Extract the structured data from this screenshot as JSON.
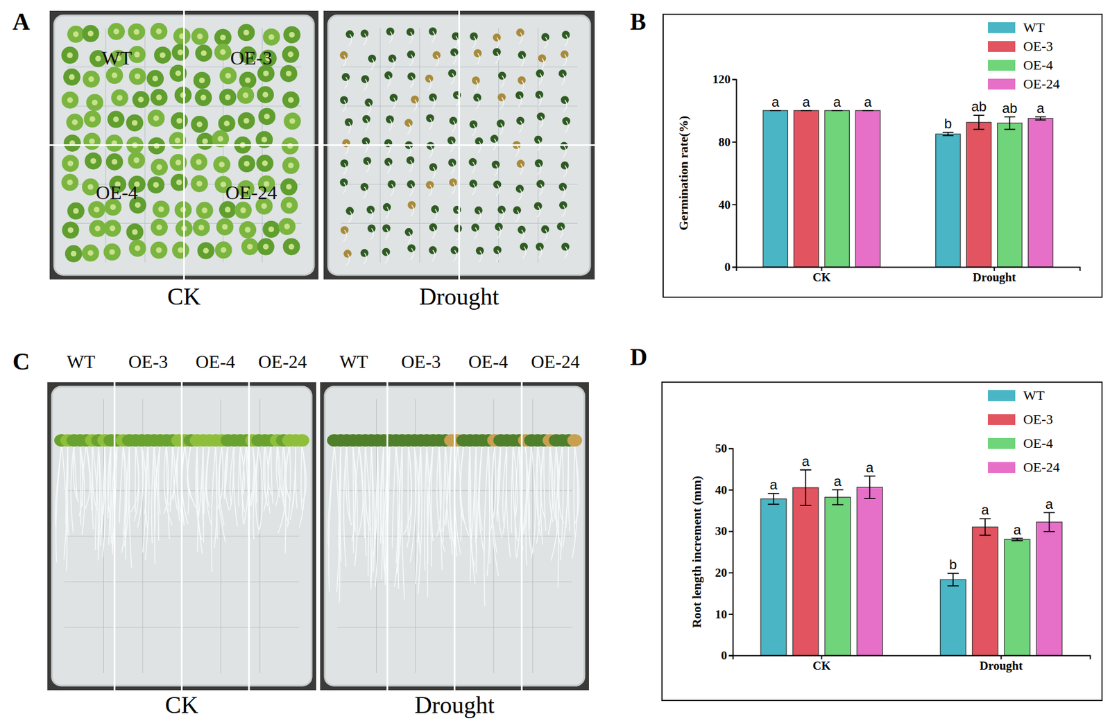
{
  "chart_data": [
    {
      "type": "bar",
      "ylabel": "Germination rate(%)",
      "categories": [
        "CK",
        "Drought"
      ],
      "series": [
        {
          "name": "WT",
          "color": "#4ab5c4",
          "values": [
            100,
            85
          ],
          "errors": [
            0,
            1
          ],
          "letters": [
            "a",
            "b"
          ]
        },
        {
          "name": "OE-3",
          "color": "#e2545f",
          "values": [
            100,
            92.5
          ],
          "errors": [
            0,
            4.5
          ],
          "letters": [
            "a",
            "ab"
          ]
        },
        {
          "name": "OE-4",
          "color": "#6fd47a",
          "values": [
            100,
            92
          ],
          "errors": [
            0,
            4
          ],
          "letters": [
            "a",
            "ab"
          ]
        },
        {
          "name": "OE-24",
          "color": "#e66fc8",
          "values": [
            100,
            95
          ],
          "errors": [
            0,
            1
          ],
          "letters": [
            "a",
            "a"
          ]
        }
      ],
      "ylim": [
        0,
        120
      ],
      "yticks": [
        0,
        40,
        80,
        120
      ],
      "legend": "upper right"
    },
    {
      "type": "bar",
      "ylabel": "Root length increment (mm)",
      "categories": [
        "CK",
        "Drought"
      ],
      "series": [
        {
          "name": "WT",
          "color": "#4ab5c4",
          "values": [
            37.8,
            18.3
          ],
          "errors": [
            1.3,
            1.5
          ],
          "letters": [
            "a",
            "b"
          ]
        },
        {
          "name": "OE-3",
          "color": "#e2545f",
          "values": [
            40.5,
            31
          ],
          "errors": [
            4.3,
            2
          ],
          "letters": [
            "a",
            "a"
          ]
        },
        {
          "name": "OE-4",
          "color": "#6fd47a",
          "values": [
            38.2,
            28
          ],
          "errors": [
            1.8,
            0.3
          ],
          "letters": [
            "a",
            "a"
          ]
        },
        {
          "name": "OE-24",
          "color": "#e66fc8",
          "values": [
            40.6,
            32.2
          ],
          "errors": [
            2.7,
            2.3
          ],
          "letters": [
            "a",
            "a"
          ]
        }
      ],
      "ylim": [
        0,
        50
      ],
      "yticks": [
        0,
        10,
        20,
        30,
        40,
        50
      ],
      "legend": "upper right"
    }
  ],
  "figure": {
    "panel_labels": [
      "A",
      "B",
      "C",
      "D"
    ],
    "photos": [
      {
        "plates": [
          {
            "caption": "CK",
            "labels": [
              "WT",
              "OE-3",
              "OE-4",
              "OE-24"
            ]
          },
          {
            "caption": "Drought",
            "labels": []
          }
        ]
      },
      {
        "plates": [
          {
            "caption": "CK",
            "labels": [
              "WT",
              "OE-3",
              "OE-4",
              "OE-24"
            ]
          },
          {
            "caption": "Drought",
            "labels": [
              "WT",
              "OE-3",
              "OE-4",
              "OE-24"
            ]
          }
        ]
      }
    ]
  }
}
